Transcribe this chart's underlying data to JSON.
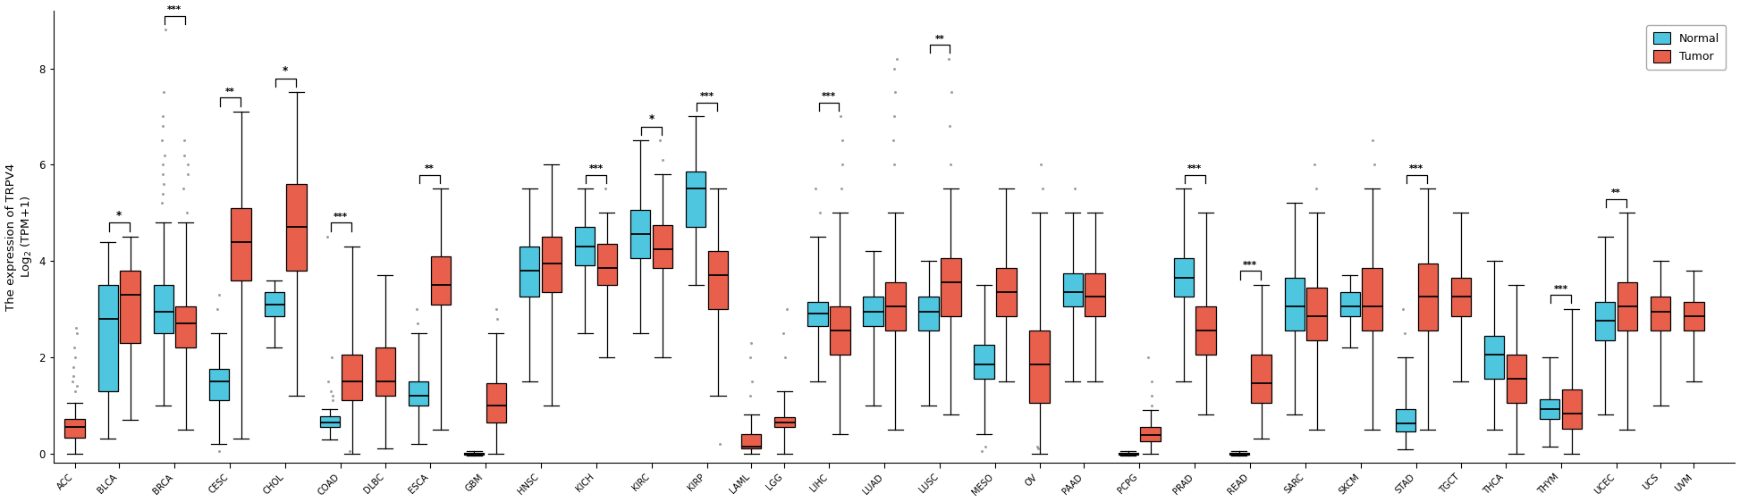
{
  "categories": [
    "ACC",
    "BLCA",
    "BRCA",
    "CESC",
    "CHOL",
    "COAD",
    "DLBC",
    "ESCA",
    "GBM",
    "HNSC",
    "KICH",
    "KIRC",
    "KIRP",
    "LAML",
    "LGG",
    "LIHC",
    "LUAD",
    "LUSC",
    "MESO",
    "OV",
    "PAAD",
    "PCPG",
    "PRAD",
    "READ",
    "SARC",
    "SKCM",
    "STAD",
    "TGCT",
    "THCA",
    "THYM",
    "UCEC",
    "UCS",
    "UVM"
  ],
  "has_normal": {
    "ACC": false,
    "BLCA": true,
    "BRCA": true,
    "CESC": true,
    "CHOL": true,
    "COAD": true,
    "DLBC": false,
    "ESCA": true,
    "GBM": true,
    "HNSC": true,
    "KICH": true,
    "KIRC": true,
    "KIRP": true,
    "LAML": false,
    "LGG": false,
    "LIHC": true,
    "LUAD": true,
    "LUSC": true,
    "MESO": true,
    "OV": false,
    "PAAD": true,
    "PCPG": true,
    "PRAD": true,
    "READ": true,
    "SARC": true,
    "SKCM": true,
    "STAD": true,
    "TGCT": false,
    "THCA": true,
    "THYM": true,
    "UCEC": true,
    "UCS": false,
    "UVM": false
  },
  "normal_color": "#4EC6E0",
  "tumor_color": "#E8604C",
  "ylabel": "The expression of TRPV4\nLog$_2$ (TPM+1)",
  "ylim": [
    -0.2,
    9.2
  ],
  "yticks": [
    0,
    2,
    4,
    6,
    8
  ],
  "boxes": {
    "ACC": {
      "normal": null,
      "tumor": {
        "q1": 0.32,
        "med": 0.55,
        "q3": 0.72,
        "whislo": 0.0,
        "whishi": 1.05,
        "fliers": [
          2.2,
          2.5,
          2.6,
          2.0,
          1.8,
          1.6,
          1.5,
          1.4,
          1.3
        ]
      }
    },
    "BLCA": {
      "normal": {
        "q1": 1.3,
        "med": 2.8,
        "q3": 3.5,
        "whislo": 0.3,
        "whishi": 4.4,
        "fliers": []
      },
      "tumor": {
        "q1": 2.3,
        "med": 3.3,
        "q3": 3.8,
        "whislo": 0.7,
        "whishi": 4.5,
        "fliers": []
      }
    },
    "BRCA": {
      "normal": {
        "q1": 2.5,
        "med": 2.95,
        "q3": 3.5,
        "whislo": 1.0,
        "whishi": 4.8,
        "fliers": [
          5.2,
          5.4,
          5.6,
          5.8,
          6.0,
          6.2,
          6.5,
          6.8,
          7.0,
          7.5,
          8.8
        ]
      },
      "tumor": {
        "q1": 2.2,
        "med": 2.7,
        "q3": 3.05,
        "whislo": 0.5,
        "whishi": 4.8,
        "fliers": [
          5.0,
          5.5,
          5.8,
          6.0,
          6.2,
          6.5
        ]
      }
    },
    "CESC": {
      "normal": {
        "q1": 1.1,
        "med": 1.5,
        "q3": 1.75,
        "whislo": 0.2,
        "whishi": 2.5,
        "fliers": [
          3.0,
          3.3,
          0.05
        ]
      },
      "tumor": {
        "q1": 3.6,
        "med": 4.4,
        "q3": 5.1,
        "whislo": 0.3,
        "whishi": 7.1,
        "fliers": []
      }
    },
    "CHOL": {
      "normal": {
        "q1": 2.85,
        "med": 3.1,
        "q3": 3.35,
        "whislo": 2.2,
        "whishi": 3.6,
        "fliers": []
      },
      "tumor": {
        "q1": 3.8,
        "med": 4.7,
        "q3": 5.6,
        "whislo": 1.2,
        "whishi": 7.5,
        "fliers": []
      }
    },
    "COAD": {
      "normal": {
        "q1": 0.55,
        "med": 0.65,
        "q3": 0.78,
        "whislo": 0.28,
        "whishi": 0.92,
        "fliers": [
          1.3,
          1.5,
          4.5,
          1.2,
          1.1,
          2.0
        ]
      },
      "tumor": {
        "q1": 1.1,
        "med": 1.5,
        "q3": 2.05,
        "whislo": 0.0,
        "whishi": 4.3,
        "fliers": [
          0.05
        ]
      }
    },
    "DLBC": {
      "normal": null,
      "tumor": {
        "q1": 1.2,
        "med": 1.5,
        "q3": 2.2,
        "whislo": 0.1,
        "whishi": 3.7,
        "fliers": []
      }
    },
    "ESCA": {
      "normal": {
        "q1": 1.0,
        "med": 1.2,
        "q3": 1.5,
        "whislo": 0.2,
        "whishi": 2.5,
        "fliers": [
          2.7,
          3.0
        ]
      },
      "tumor": {
        "q1": 3.1,
        "med": 3.5,
        "q3": 4.1,
        "whislo": 0.5,
        "whishi": 5.5,
        "fliers": []
      }
    },
    "GBM": {
      "normal": {
        "q1": -0.03,
        "med": -0.01,
        "q3": 0.01,
        "whislo": -0.05,
        "whishi": 0.05,
        "fliers": []
      },
      "tumor": {
        "q1": 0.65,
        "med": 1.0,
        "q3": 1.45,
        "whislo": 0.0,
        "whishi": 2.5,
        "fliers": [
          2.8,
          3.0
        ]
      }
    },
    "HNSC": {
      "normal": {
        "q1": 3.25,
        "med": 3.8,
        "q3": 4.3,
        "whislo": 1.5,
        "whishi": 5.5,
        "fliers": []
      },
      "tumor": {
        "q1": 3.35,
        "med": 3.95,
        "q3": 4.5,
        "whislo": 1.0,
        "whishi": 6.0,
        "fliers": []
      }
    },
    "KICH": {
      "normal": {
        "q1": 3.9,
        "med": 4.3,
        "q3": 4.7,
        "whislo": 2.5,
        "whishi": 5.5,
        "fliers": []
      },
      "tumor": {
        "q1": 3.5,
        "med": 3.85,
        "q3": 4.35,
        "whislo": 2.0,
        "whishi": 5.0,
        "fliers": [
          5.5
        ]
      }
    },
    "KIRC": {
      "normal": {
        "q1": 4.05,
        "med": 4.55,
        "q3": 5.05,
        "whislo": 2.5,
        "whishi": 6.5,
        "fliers": []
      },
      "tumor": {
        "q1": 3.85,
        "med": 4.25,
        "q3": 4.75,
        "whislo": 2.0,
        "whishi": 5.8,
        "fliers": [
          6.1,
          6.5
        ]
      }
    },
    "KIRP": {
      "normal": {
        "q1": 4.7,
        "med": 5.5,
        "q3": 5.85,
        "whislo": 3.5,
        "whishi": 7.0,
        "fliers": []
      },
      "tumor": {
        "q1": 3.0,
        "med": 3.7,
        "q3": 4.2,
        "whislo": 1.2,
        "whishi": 5.5,
        "fliers": [
          0.2
        ]
      }
    },
    "LAML": {
      "normal": null,
      "tumor": {
        "q1": 0.1,
        "med": 0.15,
        "q3": 0.4,
        "whislo": 0.0,
        "whishi": 0.8,
        "fliers": [
          1.2,
          1.5,
          2.0,
          2.3
        ]
      }
    },
    "LGG": {
      "normal": null,
      "tumor": {
        "q1": 0.55,
        "med": 0.65,
        "q3": 0.75,
        "whislo": 0.0,
        "whishi": 1.3,
        "fliers": [
          2.0,
          2.5,
          3.0
        ]
      }
    },
    "LIHC": {
      "normal": {
        "q1": 2.65,
        "med": 2.9,
        "q3": 3.15,
        "whislo": 1.5,
        "whishi": 4.5,
        "fliers": [
          5.0,
          5.5
        ]
      },
      "tumor": {
        "q1": 2.05,
        "med": 2.55,
        "q3": 3.05,
        "whislo": 0.4,
        "whishi": 5.0,
        "fliers": [
          5.5,
          6.0,
          6.5,
          7.0
        ]
      }
    },
    "LUAD": {
      "normal": {
        "q1": 2.65,
        "med": 2.95,
        "q3": 3.25,
        "whislo": 1.0,
        "whishi": 4.2,
        "fliers": []
      },
      "tumor": {
        "q1": 2.55,
        "med": 3.05,
        "q3": 3.55,
        "whislo": 0.5,
        "whishi": 5.0,
        "fliers": [
          6.0,
          6.5,
          7.0,
          7.5,
          8.0,
          8.2
        ]
      }
    },
    "LUSC": {
      "normal": {
        "q1": 2.55,
        "med": 2.95,
        "q3": 3.25,
        "whislo": 1.0,
        "whishi": 4.0,
        "fliers": []
      },
      "tumor": {
        "q1": 2.85,
        "med": 3.55,
        "q3": 4.05,
        "whislo": 0.8,
        "whishi": 5.5,
        "fliers": [
          6.0,
          6.8,
          7.5,
          8.2
        ]
      }
    },
    "MESO": {
      "normal": {
        "q1": 1.55,
        "med": 1.85,
        "q3": 2.25,
        "whislo": 0.4,
        "whishi": 3.5,
        "fliers": [
          0.15,
          0.05
        ]
      },
      "tumor": {
        "q1": 2.85,
        "med": 3.35,
        "q3": 3.85,
        "whislo": 1.5,
        "whishi": 5.5,
        "fliers": []
      }
    },
    "OV": {
      "normal": null,
      "tumor": {
        "q1": 1.05,
        "med": 1.85,
        "q3": 2.55,
        "whislo": 0.0,
        "whishi": 5.0,
        "fliers": [
          5.5,
          6.0,
          0.1,
          0.15
        ]
      }
    },
    "PAAD": {
      "normal": {
        "q1": 3.05,
        "med": 3.35,
        "q3": 3.75,
        "whislo": 1.5,
        "whishi": 5.0,
        "fliers": [
          5.5
        ]
      },
      "tumor": {
        "q1": 2.85,
        "med": 3.25,
        "q3": 3.75,
        "whislo": 1.5,
        "whishi": 5.0,
        "fliers": []
      }
    },
    "PCPG": {
      "normal": {
        "q1": -0.03,
        "med": -0.01,
        "q3": 0.01,
        "whislo": -0.05,
        "whishi": 0.05,
        "fliers": []
      },
      "tumor": {
        "q1": 0.25,
        "med": 0.38,
        "q3": 0.55,
        "whislo": 0.0,
        "whishi": 0.9,
        "fliers": [
          1.0,
          1.2,
          1.5,
          2.0
        ]
      }
    },
    "PRAD": {
      "normal": {
        "q1": 3.25,
        "med": 3.65,
        "q3": 4.05,
        "whislo": 1.5,
        "whishi": 5.5,
        "fliers": []
      },
      "tumor": {
        "q1": 2.05,
        "med": 2.55,
        "q3": 3.05,
        "whislo": 0.8,
        "whishi": 5.0,
        "fliers": []
      }
    },
    "READ": {
      "normal": {
        "q1": -0.03,
        "med": -0.01,
        "q3": 0.01,
        "whislo": -0.05,
        "whishi": 0.05,
        "fliers": []
      },
      "tumor": {
        "q1": 1.05,
        "med": 1.45,
        "q3": 2.05,
        "whislo": 0.3,
        "whishi": 3.5,
        "fliers": []
      }
    },
    "SARC": {
      "normal": {
        "q1": 2.55,
        "med": 3.05,
        "q3": 3.65,
        "whislo": 0.8,
        "whishi": 5.2,
        "fliers": []
      },
      "tumor": {
        "q1": 2.35,
        "med": 2.85,
        "q3": 3.45,
        "whislo": 0.5,
        "whishi": 5.0,
        "fliers": [
          5.5,
          6.0
        ]
      }
    },
    "SKCM": {
      "normal": {
        "q1": 2.85,
        "med": 3.05,
        "q3": 3.35,
        "whislo": 2.2,
        "whishi": 3.7,
        "fliers": []
      },
      "tumor": {
        "q1": 2.55,
        "med": 3.05,
        "q3": 3.85,
        "whislo": 0.5,
        "whishi": 5.5,
        "fliers": [
          6.0,
          6.5
        ]
      }
    },
    "STAD": {
      "normal": {
        "q1": 0.45,
        "med": 0.62,
        "q3": 0.92,
        "whislo": 0.08,
        "whishi": 2.0,
        "fliers": [
          2.5,
          3.0
        ]
      },
      "tumor": {
        "q1": 2.55,
        "med": 3.25,
        "q3": 3.95,
        "whislo": 0.5,
        "whishi": 5.5,
        "fliers": []
      }
    },
    "TGCT": {
      "normal": null,
      "tumor": {
        "q1": 2.85,
        "med": 3.25,
        "q3": 3.65,
        "whislo": 1.5,
        "whishi": 5.0,
        "fliers": []
      }
    },
    "THCA": {
      "normal": {
        "q1": 1.55,
        "med": 2.05,
        "q3": 2.45,
        "whislo": 0.5,
        "whishi": 4.0,
        "fliers": []
      },
      "tumor": {
        "q1": 1.05,
        "med": 1.55,
        "q3": 2.05,
        "whislo": 0.0,
        "whishi": 3.5,
        "fliers": []
      }
    },
    "THYM": {
      "normal": {
        "q1": 0.72,
        "med": 0.92,
        "q3": 1.12,
        "whislo": 0.15,
        "whishi": 2.0,
        "fliers": []
      },
      "tumor": {
        "q1": 0.52,
        "med": 0.82,
        "q3": 1.32,
        "whislo": 0.0,
        "whishi": 3.0,
        "fliers": []
      }
    },
    "UCEC": {
      "normal": {
        "q1": 2.35,
        "med": 2.75,
        "q3": 3.15,
        "whislo": 0.8,
        "whishi": 4.5,
        "fliers": []
      },
      "tumor": {
        "q1": 2.55,
        "med": 3.05,
        "q3": 3.55,
        "whislo": 0.5,
        "whishi": 5.0,
        "fliers": []
      }
    },
    "UCS": {
      "normal": null,
      "tumor": {
        "q1": 2.55,
        "med": 2.95,
        "q3": 3.25,
        "whislo": 1.0,
        "whishi": 4.0,
        "fliers": []
      }
    },
    "UVM": {
      "normal": null,
      "tumor": {
        "q1": 2.55,
        "med": 2.85,
        "q3": 3.15,
        "whislo": 1.5,
        "whishi": 3.8,
        "fliers": []
      }
    }
  },
  "sig_labels": {
    "BLCA": "*",
    "BRCA": "***",
    "CESC": "**",
    "CHOL": "*",
    "COAD": "***",
    "ESCA": "**",
    "KICH": "***",
    "KIRC": "*",
    "KIRP": "***",
    "LIHC": "***",
    "LUSC": "**",
    "PRAD": "***",
    "READ": "***",
    "STAD": "***",
    "THYM": "***",
    "UCEC": "**"
  }
}
